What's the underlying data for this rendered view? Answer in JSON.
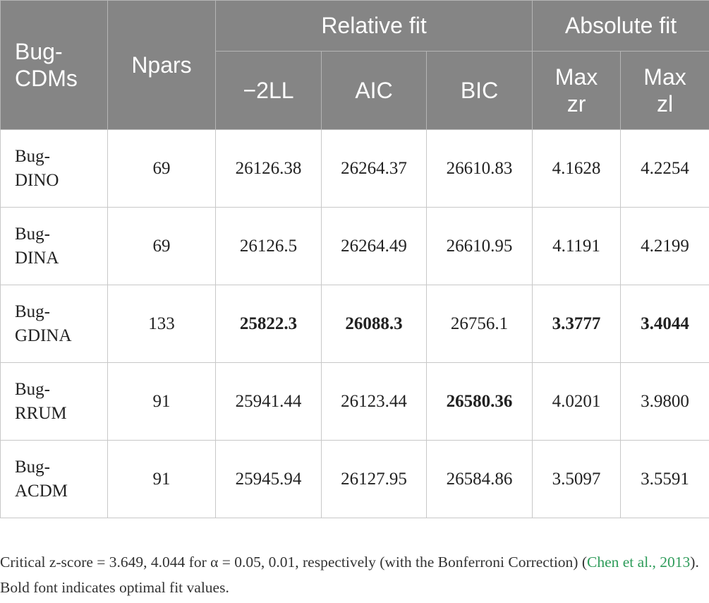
{
  "table": {
    "header": {
      "model": "Bug-CDMs",
      "npars": "Npars",
      "groups": [
        {
          "label": "Relative fit",
          "columns": [
            "−2LL",
            "AIC",
            "BIC"
          ]
        },
        {
          "label": "Absolute fit",
          "columns": [
            "Max zr",
            "Max zl"
          ]
        }
      ]
    },
    "rows": [
      {
        "model": "Bug-DINO",
        "npars": "69",
        "values": [
          "26126.38",
          "26264.37",
          "26610.83",
          "4.1628",
          "4.2254"
        ]
      },
      {
        "model": "Bug-DINA",
        "npars": "69",
        "values": [
          "26126.5",
          "26264.49",
          "26610.95",
          "4.1191",
          "4.2199"
        ]
      },
      {
        "model": "Bug-GDINA",
        "npars": "133",
        "values": [
          "25822.3",
          "26088.3",
          "26756.1",
          "3.3777",
          "3.4044"
        ],
        "bold": [
          0,
          1,
          3,
          4
        ]
      },
      {
        "model": "Bug-RRUM",
        "npars": "91",
        "values": [
          "25941.44",
          "26123.44",
          "26580.36",
          "4.0201",
          "3.9800"
        ],
        "bold": [
          2
        ]
      },
      {
        "model": "Bug-ACDM",
        "npars": "91",
        "values": [
          "25945.94",
          "26127.95",
          "26584.86",
          "3.5097",
          "3.5591"
        ]
      }
    ]
  },
  "footnote": {
    "text_before": "Critical z-score = 3.649, 4.044 for α = 0.05, 0.01, respectively (with the Bonferroni Correction) (",
    "citation": "Chen et al., 2013",
    "text_after": "). Bold font indicates optimal fit values."
  }
}
